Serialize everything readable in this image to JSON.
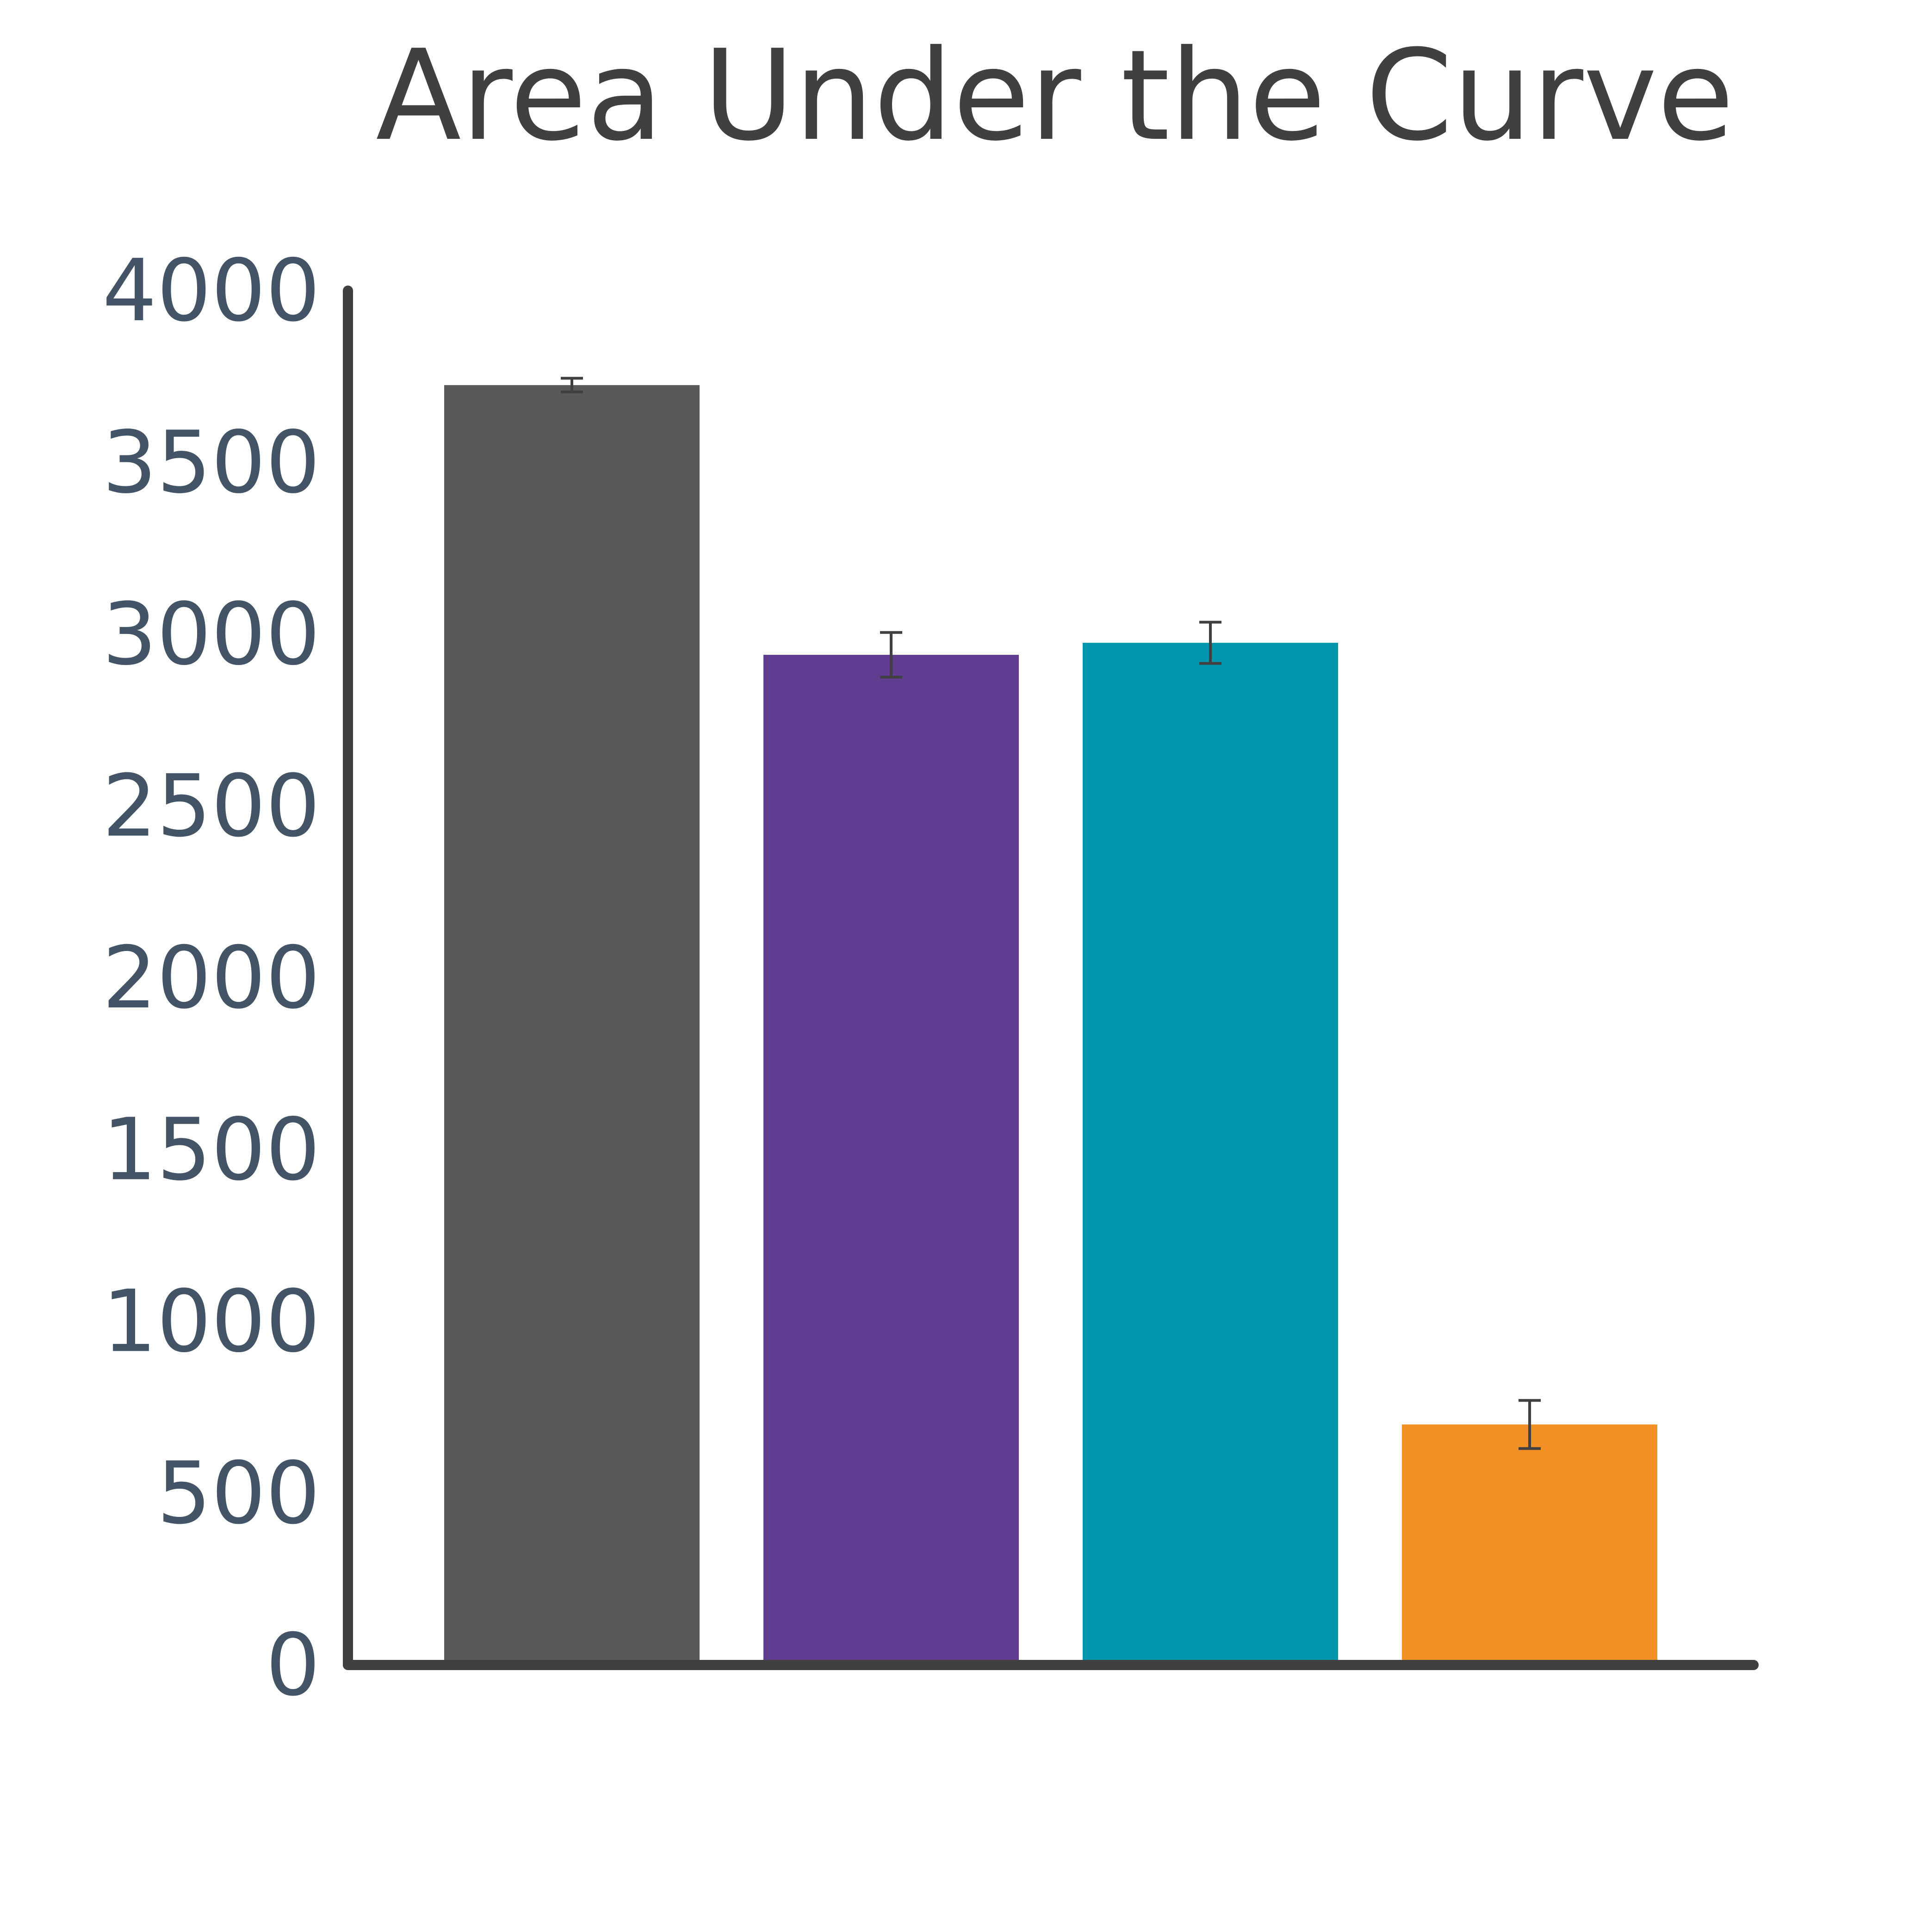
{
  "chart_data": {
    "type": "bar",
    "title": "Area Under the Curve",
    "xlabel": "",
    "ylabel": "",
    "categories": [
      "",
      "",
      "",
      ""
    ],
    "values": [
      3725,
      2940,
      2975,
      700
    ],
    "errors": [
      20,
      65,
      60,
      70
    ],
    "colors": [
      "#595959",
      "#613D91",
      "#0096AD",
      "#F39025"
    ],
    "ylim": [
      0,
      4000
    ],
    "yticks": [
      0,
      500,
      1000,
      1500,
      2000,
      2500,
      3000,
      3500,
      4000
    ],
    "grid": false,
    "legend": "none",
    "axis_color": "#404040",
    "tick_label_color": "#425466"
  }
}
